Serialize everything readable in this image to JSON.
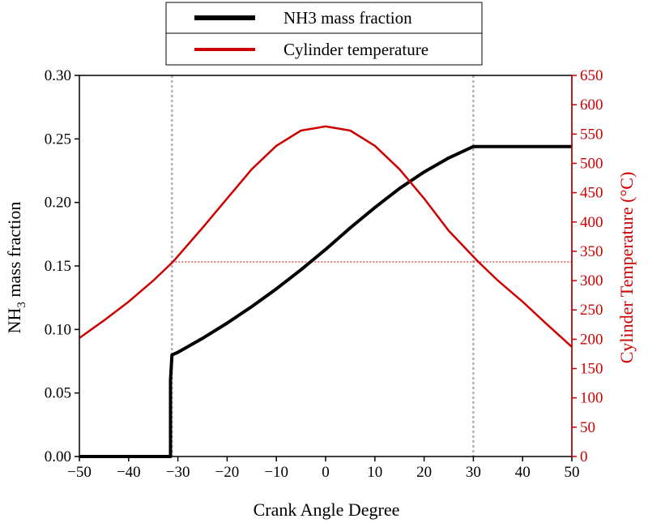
{
  "colors": {
    "nh3": "#000000",
    "temp": "#cc0000",
    "guide_gray": "#b0b0b0"
  },
  "chart_data": {
    "type": "line",
    "xlabel": "Crank Angle Degree",
    "ylabel_left_main": "NH",
    "ylabel_left_sub": "3",
    "ylabel_left_rest": " mass fraction",
    "ylabel_right": "Cylinder Temperature (°C)",
    "xlim": [
      -50,
      50
    ],
    "ylim_left": [
      0,
      0.3
    ],
    "ylim_right": [
      0,
      650
    ],
    "xticks": [
      -50,
      -40,
      -30,
      -20,
      -10,
      0,
      10,
      20,
      30,
      40,
      50
    ],
    "xtick_labels": [
      "−50",
      "−40",
      "−30",
      "−20",
      "−10",
      "0",
      "10",
      "20",
      "30",
      "40",
      "50"
    ],
    "yticks_left": [
      "0.00",
      "0.05",
      "0.10",
      "0.15",
      "0.20",
      "0.25",
      "0.30"
    ],
    "yticks_right": [
      "0",
      "50",
      "100",
      "150",
      "200",
      "250",
      "300",
      "350",
      "400",
      "450",
      "500",
      "550",
      "600",
      "650"
    ],
    "legend_position": "top-center",
    "series": [
      {
        "name": "NH3 mass fraction",
        "axis": "left",
        "x": [
          -50,
          -31.5,
          -31.5,
          -31.2,
          -30,
          -25,
          -20,
          -15,
          -10,
          -5,
          0,
          5,
          10,
          15,
          20,
          25,
          30,
          40,
          50
        ],
        "y": [
          0,
          0,
          0.06,
          0.08,
          0.082,
          0.093,
          0.105,
          0.118,
          0.132,
          0.147,
          0.163,
          0.18,
          0.196,
          0.211,
          0.224,
          0.235,
          0.244,
          0.244,
          0.244
        ]
      },
      {
        "name": "Cylinder temperature",
        "axis": "right",
        "x": [
          -50,
          -45,
          -40,
          -35,
          -31,
          -25,
          -20,
          -15,
          -10,
          -5,
          0,
          5,
          10,
          15,
          20,
          25,
          31,
          35,
          40,
          45,
          50
        ],
        "y": [
          202,
          232,
          264,
          300,
          332,
          390,
          440,
          490,
          530,
          556,
          563,
          556,
          530,
          490,
          440,
          385,
          332,
          300,
          264,
          225,
          187
        ]
      }
    ],
    "annotations": {
      "vertical_guides_x": [
        -31.2,
        30
      ],
      "horizontal_guide_temp": 332
    }
  }
}
